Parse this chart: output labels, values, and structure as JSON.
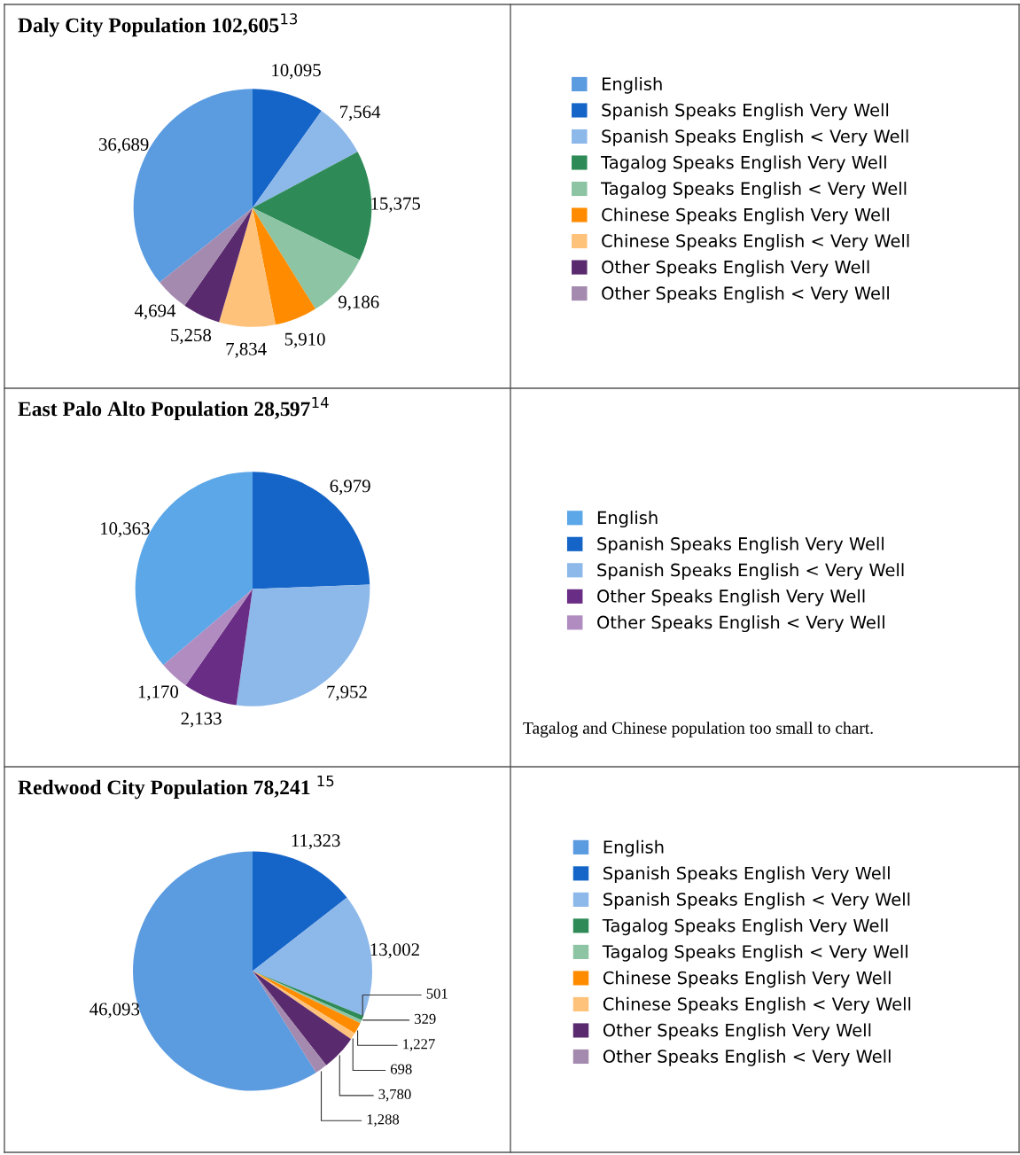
{
  "chart_data": [
    {
      "type": "pie",
      "title": "Daly City Population 102,605$^{13}$",
      "categories": [
        "English",
        "Spanish Speaks English Very Well",
        "Spanish Speaks English < Very Well",
        "Tagalog Speaks English Very Well",
        "Tagalog Speaks English < Very Well",
        "Chinese Speaks English Very Well",
        "Chinese Speaks English < Very Well",
        "Other Speaks English Very Well",
        "Other Speaks English < Very Well"
      ],
      "values": [
        36689,
        10095,
        7564,
        15375,
        9186,
        5910,
        7834,
        5258,
        4694
      ],
      "colors": [
        "#5b9be0",
        "#1565c8",
        "#8db8ea",
        "#2e8b57",
        "#8cc4a4",
        "#ff8c00",
        "#ffc27a",
        "#5a2a6e",
        "#a48aae"
      ],
      "value_labels": [
        "36,689",
        "10,095",
        "7,564",
        "15,375",
        "9,186",
        "5,910",
        "7,834",
        "5,258",
        "4,694"
      ],
      "legend": "right"
    },
    {
      "type": "pie",
      "title": "East Palo Alto Population 28,597$^{14}$",
      "categories": [
        "English",
        "Spanish Speaks English Very Well",
        "Spanish Speaks English < Very Well",
        "Other Speaks English Very Well",
        "Other Speaks English < Very Well"
      ],
      "values": [
        10363,
        6979,
        7952,
        2133,
        1170
      ],
      "colors": [
        "#5ba7e8",
        "#1565c8",
        "#8db8ea",
        "#6a2d85",
        "#b08cc0"
      ],
      "value_labels": [
        "10,363",
        "6,979",
        "7,952",
        "2,133",
        "1,170"
      ],
      "legend": "right",
      "annotations": [
        "Tagalog and Chinese population too small to chart."
      ]
    },
    {
      "type": "pie",
      "title": "Redwood City Population 78,241 $^{15}$",
      "categories": [
        "English",
        "Spanish Speaks English Very Well",
        "Spanish Speaks English < Very Well",
        "Tagalog Speaks English Very Well",
        "Tagalog Speaks English < Very Well",
        "Chinese Speaks English Very Well",
        "Chinese Speaks English < Very Well",
        "Other Speaks English Very Well",
        "Other Speaks English < Very Well"
      ],
      "values": [
        46093,
        11323,
        13002,
        501,
        329,
        1227,
        698,
        3780,
        1288
      ],
      "colors": [
        "#5b9be0",
        "#1565c8",
        "#8db8ea",
        "#2e8b57",
        "#8cc4a4",
        "#ff8c00",
        "#ffc27a",
        "#5a2a6e",
        "#a48aae"
      ],
      "value_labels": [
        "46,093",
        "11,323",
        "13,002",
        "501",
        "329",
        "1,227",
        "698",
        "3,780",
        "1,288"
      ],
      "legend": "right"
    }
  ]
}
